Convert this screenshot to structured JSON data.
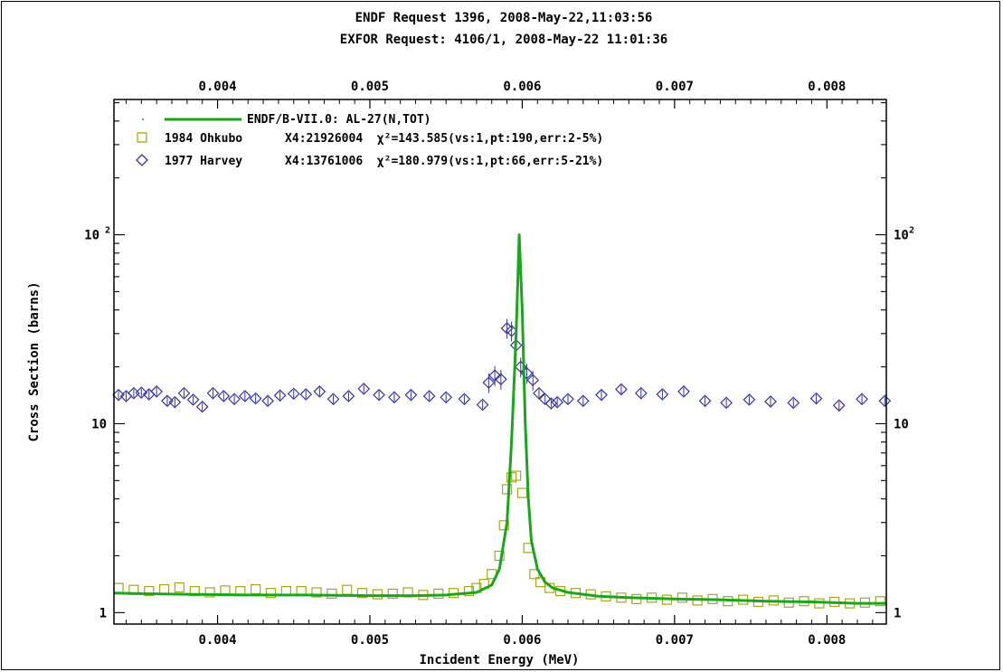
{
  "chart_data": {
    "type": "scatter",
    "title_lines": [
      "ENDF Request 1396, 2008-May-22,11:03:56",
      "EXFOR Request: 4106/1, 2008-May-22 11:01:36"
    ],
    "xlabel": "Incident Energy (MeV)",
    "ylabel": "Cross Section (barns)",
    "xlim": [
      0.00332,
      0.00839
    ],
    "ylim": [
      0.87,
      520
    ],
    "yscale": "log",
    "x_ticks": [
      0.004,
      0.005,
      0.006,
      0.007,
      0.008
    ],
    "x_tick_labels": [
      "0.004",
      "0.005",
      "0.006",
      "0.007",
      "0.008"
    ],
    "y_ticks": [
      1,
      10,
      100
    ],
    "y_tick_labels": [
      {
        "base": "1",
        "exp": ""
      },
      {
        "base": "10",
        "exp": ""
      },
      {
        "base": "10",
        "exp": "2"
      }
    ],
    "legend_position": "top-left",
    "colors": {
      "endf": "#1aa61a",
      "ohkubo": "#a6a61a",
      "harvey": "#3333a6"
    },
    "legend": [
      {
        "text": "ENDF/B-VII.0: AL-27(N,TOT)",
        "marker": "line"
      },
      {
        "text": "1984 Ohkubo      X4:21926004  χ²=143.585(vs:1,pt:190,err:2-5%)",
        "marker": "square"
      },
      {
        "text": "1977 Harvey      X4:13761006  χ²=180.979(vs:1,pt:66,err:5-21%)",
        "marker": "diamond"
      }
    ],
    "series": [
      {
        "name": "ENDF/B-VII.0: AL-27(N,TOT)",
        "kind": "line",
        "x": [
          0.00332,
          0.0035,
          0.0038,
          0.0042,
          0.0046,
          0.005,
          0.0053,
          0.0055,
          0.0057,
          0.0058,
          0.00585,
          0.0059,
          0.00593,
          0.00596,
          0.00598,
          0.006,
          0.00602,
          0.00604,
          0.00606,
          0.0061,
          0.00615,
          0.0062,
          0.0063,
          0.0065,
          0.0067,
          0.007,
          0.0073,
          0.0076,
          0.0079,
          0.0082,
          0.00839
        ],
        "y": [
          1.27,
          1.26,
          1.25,
          1.24,
          1.24,
          1.23,
          1.23,
          1.24,
          1.28,
          1.4,
          1.7,
          3.0,
          8.0,
          30.0,
          100.0,
          40.0,
          10.0,
          4.0,
          2.4,
          1.7,
          1.45,
          1.35,
          1.28,
          1.22,
          1.2,
          1.18,
          1.17,
          1.15,
          1.14,
          1.12,
          1.12
        ]
      },
      {
        "name": "1984 Ohkubo",
        "kind": "points",
        "x": [
          0.00335,
          0.00345,
          0.00355,
          0.00365,
          0.00375,
          0.00385,
          0.00395,
          0.00405,
          0.00415,
          0.00425,
          0.00435,
          0.00445,
          0.00455,
          0.00465,
          0.00475,
          0.00485,
          0.00495,
          0.00505,
          0.00515,
          0.00525,
          0.00535,
          0.00545,
          0.00555,
          0.00565,
          0.0057,
          0.00575,
          0.0058,
          0.00585,
          0.00588,
          0.0059,
          0.00593,
          0.00596,
          0.006,
          0.00604,
          0.00608,
          0.00612,
          0.00618,
          0.00625,
          0.00635,
          0.00645,
          0.00655,
          0.00665,
          0.00675,
          0.00685,
          0.00695,
          0.00705,
          0.00715,
          0.00725,
          0.00735,
          0.00745,
          0.00755,
          0.00765,
          0.00775,
          0.00785,
          0.00795,
          0.00805,
          0.00815,
          0.00825,
          0.00835
        ],
        "y": [
          1.35,
          1.32,
          1.3,
          1.33,
          1.36,
          1.3,
          1.28,
          1.31,
          1.3,
          1.33,
          1.27,
          1.3,
          1.3,
          1.28,
          1.26,
          1.32,
          1.27,
          1.25,
          1.26,
          1.28,
          1.24,
          1.26,
          1.27,
          1.3,
          1.35,
          1.42,
          1.6,
          2.0,
          2.9,
          4.5,
          5.2,
          5.3,
          4.3,
          2.2,
          1.6,
          1.45,
          1.35,
          1.3,
          1.27,
          1.25,
          1.22,
          1.2,
          1.18,
          1.2,
          1.17,
          1.2,
          1.16,
          1.18,
          1.15,
          1.17,
          1.14,
          1.16,
          1.13,
          1.15,
          1.12,
          1.14,
          1.12,
          1.13,
          1.15
        ]
      },
      {
        "name": "1977 Harvey",
        "kind": "points",
        "x": [
          0.00335,
          0.0034,
          0.00345,
          0.0035,
          0.00355,
          0.0036,
          0.00367,
          0.00372,
          0.00378,
          0.00384,
          0.0039,
          0.00397,
          0.00404,
          0.00411,
          0.00418,
          0.00425,
          0.00433,
          0.00441,
          0.0045,
          0.00458,
          0.00467,
          0.00476,
          0.00486,
          0.00496,
          0.00506,
          0.00516,
          0.00527,
          0.00539,
          0.0055,
          0.00562,
          0.00574,
          0.00578,
          0.00582,
          0.00586,
          0.0059,
          0.00593,
          0.00596,
          0.00599,
          0.00603,
          0.00607,
          0.00611,
          0.00615,
          0.00619,
          0.00623,
          0.0063,
          0.0064,
          0.00652,
          0.00665,
          0.00678,
          0.00692,
          0.00706,
          0.0072,
          0.00734,
          0.00749,
          0.00763,
          0.00778,
          0.00793,
          0.00808,
          0.00823,
          0.00838
        ],
        "y": [
          14.2,
          14.0,
          14.5,
          14.6,
          14.3,
          14.8,
          13.2,
          13.0,
          14.5,
          13.4,
          12.3,
          14.5,
          14.0,
          13.5,
          14.0,
          13.6,
          13.2,
          14.1,
          14.4,
          14.3,
          14.8,
          13.5,
          14.0,
          15.3,
          14.2,
          13.8,
          14.2,
          14.0,
          13.8,
          13.5,
          12.6,
          16.5,
          18.0,
          17.2,
          32.0,
          31.0,
          26.0,
          20.0,
          18.5,
          17.0,
          14.5,
          13.5,
          12.8,
          13.0,
          13.5,
          13.2,
          14.2,
          15.2,
          14.5,
          14.3,
          14.8,
          13.2,
          12.9,
          13.4,
          13.1,
          12.9,
          13.6,
          12.5,
          13.5,
          13.2
        ]
      }
    ]
  }
}
